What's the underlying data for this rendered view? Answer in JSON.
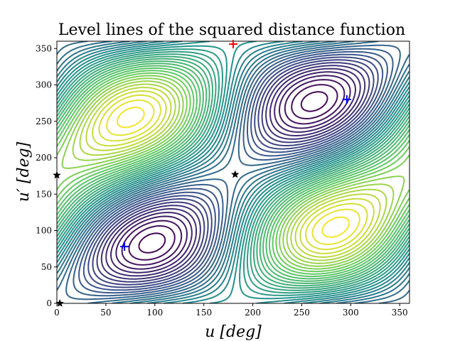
{
  "chart_data": {
    "type": "contour",
    "title": "Level lines of the squared distance function",
    "xlabel": "u [deg]",
    "ylabel": "u′ [deg]",
    "xlim": [
      0,
      360
    ],
    "ylim": [
      0,
      360
    ],
    "xticks": [
      0,
      50,
      100,
      150,
      200,
      250,
      300,
      350
    ],
    "yticks": [
      0,
      50,
      100,
      150,
      200,
      250,
      300,
      350
    ],
    "colormap": [
      "#440154",
      "#3b528b",
      "#21918c",
      "#5ec962",
      "#fde725"
    ],
    "grid": false,
    "markers": [
      {
        "kind": "plus",
        "color": "#ff0000",
        "x": 180,
        "y": 356
      },
      {
        "kind": "plus",
        "color": "#0000ff",
        "x": 296,
        "y": 280
      },
      {
        "kind": "plus",
        "color": "#0000ff",
        "x": 69,
        "y": 78
      },
      {
        "kind": "star",
        "color": "#000000",
        "x": 182,
        "y": 177
      },
      {
        "kind": "star",
        "color": "#000000",
        "x": 0,
        "y": 176
      },
      {
        "kind": "star",
        "color": "#000000",
        "x": 3,
        "y": 0
      }
    ]
  }
}
